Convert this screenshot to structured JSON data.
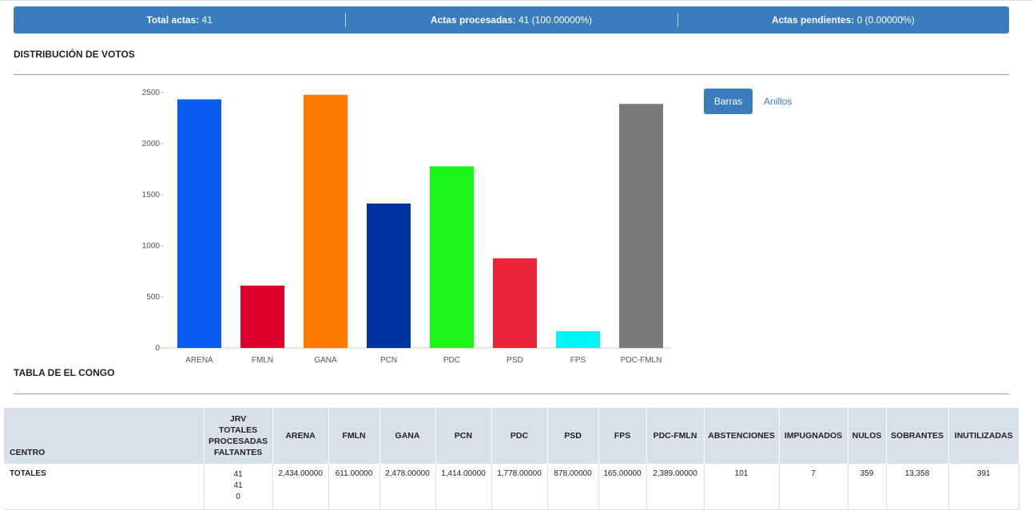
{
  "summary": {
    "total_label": "Total actas:",
    "total_value": "41",
    "processed_label": "Actas procesadas:",
    "processed_value": "41 (100.00000%)",
    "pending_label": "Actas pendientes:",
    "pending_value": "0 (0.00000%)",
    "color": "#3a7dbf"
  },
  "distribution": {
    "title": "DISTRIBUCIÓN DE VOTOS"
  },
  "toggle": {
    "bars_label": "Barras",
    "rings_label": "Anillos"
  },
  "chart_data": {
    "type": "bar",
    "categories": [
      "ARENA",
      "FMLN",
      "GANA",
      "PCN",
      "PDC",
      "PSD",
      "FPS",
      "PDC-FMLN"
    ],
    "values": [
      2434,
      611,
      2478,
      1414,
      1778,
      878,
      165,
      2389
    ],
    "colors": [
      "#0a5cf5",
      "#e0002b",
      "#ff7800",
      "#0033a0",
      "#1cf51c",
      "#ea2537",
      "#00f5f5",
      "#7a7a7a"
    ],
    "ylim": [
      0,
      2500
    ],
    "yticks": [
      0,
      500,
      1000,
      1500,
      2000,
      2500
    ],
    "title": "",
    "xlabel": "",
    "ylabel": "",
    "grid": false,
    "legend": "none"
  },
  "table_section": {
    "title": "TABLA DE EL CONGO"
  },
  "table": {
    "headers": {
      "centro": "CENTRO",
      "jrv": [
        "JRV",
        "TOTALES",
        "PROCESADAS",
        "FALTANTES"
      ],
      "arena": "ARENA",
      "fmln": "FMLN",
      "gana": "GANA",
      "pcn": "PCN",
      "pdc": "PDC",
      "psd": "PSD",
      "fps": "FPS",
      "pdc_fmln": "PDC-FMLN",
      "abstenciones": "ABSTENCIONES",
      "impugnados": "IMPUGNADOS",
      "nulos": "NULOS",
      "sobrantes": "SOBRANTES",
      "inutilizadas": "INUTILIZADAS"
    },
    "rows": [
      {
        "centro": "TOTALES",
        "jrv": [
          "41",
          "41",
          "0"
        ],
        "arena": "2,434.00000",
        "fmln": "611.00000",
        "gana": "2,478.00000",
        "pcn": "1,414.00000",
        "pdc": "1,778.00000",
        "psd": "878.00000",
        "fps": "165.00000",
        "pdc_fmln": "2,389.00000",
        "abstenciones": "101",
        "impugnados": "7",
        "nulos": "359",
        "sobrantes": "13,358",
        "inutilizadas": "391"
      }
    ]
  }
}
